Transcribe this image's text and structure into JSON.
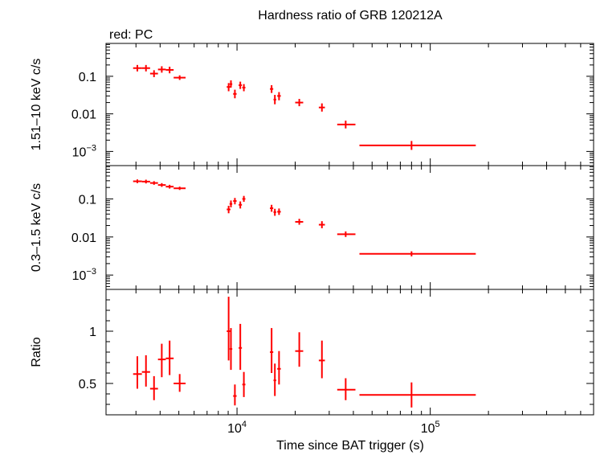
{
  "chart_data": {
    "type": "scatter",
    "title": "Hardness ratio of GRB 120212A",
    "legend": "red: PC",
    "xlabel": "Time since BAT trigger (s)",
    "x_scale": "log",
    "xlim": [
      2100,
      700000
    ],
    "x_tick_labels": [
      {
        "value": 10000,
        "base": "10",
        "exp": "4"
      },
      {
        "value": 100000,
        "base": "10",
        "exp": "5"
      }
    ],
    "color": "#ff0000",
    "panels": [
      {
        "id": "hard",
        "ylabel": "1.51–10 keV c/s",
        "y_scale": "log",
        "ylim": [
          0.00042,
          0.75
        ],
        "y_tick_labels": [
          {
            "value": 0.1,
            "text": "0.1"
          },
          {
            "value": 0.01,
            "text": "0.01"
          },
          {
            "value": 0.001,
            "base": "10",
            "exp": "−3"
          }
        ],
        "points": [
          {
            "x": 3050,
            "xlo": 2900,
            "xhi": 3220,
            "y": 0.165,
            "ylo": 0.135,
            "yhi": 0.2
          },
          {
            "x": 3380,
            "xlo": 3220,
            "xhi": 3550,
            "y": 0.165,
            "ylo": 0.135,
            "yhi": 0.2
          },
          {
            "x": 3720,
            "xlo": 3550,
            "xhi": 3900,
            "y": 0.118,
            "ylo": 0.095,
            "yhi": 0.145
          },
          {
            "x": 4080,
            "xlo": 3900,
            "xhi": 4280,
            "y": 0.152,
            "ylo": 0.125,
            "yhi": 0.185
          },
          {
            "x": 4480,
            "xlo": 4280,
            "xhi": 4700,
            "y": 0.148,
            "ylo": 0.12,
            "yhi": 0.18
          },
          {
            "x": 5050,
            "xlo": 4700,
            "xhi": 5420,
            "y": 0.092,
            "ylo": 0.08,
            "yhi": 0.106
          },
          {
            "x": 9050,
            "xlo": 8850,
            "xhi": 9250,
            "y": 0.052,
            "ylo": 0.04,
            "yhi": 0.066
          },
          {
            "x": 9300,
            "xlo": 9150,
            "xhi": 9450,
            "y": 0.062,
            "ylo": 0.05,
            "yhi": 0.078
          },
          {
            "x": 9750,
            "xlo": 9550,
            "xhi": 9950,
            "y": 0.034,
            "ylo": 0.026,
            "yhi": 0.044
          },
          {
            "x": 10400,
            "xlo": 10200,
            "xhi": 10600,
            "y": 0.058,
            "ylo": 0.046,
            "yhi": 0.072
          },
          {
            "x": 10850,
            "xlo": 10650,
            "xhi": 11050,
            "y": 0.05,
            "ylo": 0.04,
            "yhi": 0.062
          },
          {
            "x": 15100,
            "xlo": 14800,
            "xhi": 15400,
            "y": 0.046,
            "ylo": 0.036,
            "yhi": 0.058
          },
          {
            "x": 15700,
            "xlo": 15450,
            "xhi": 15950,
            "y": 0.024,
            "ylo": 0.018,
            "yhi": 0.032
          },
          {
            "x": 16500,
            "xlo": 16150,
            "xhi": 16850,
            "y": 0.03,
            "ylo": 0.023,
            "yhi": 0.038
          },
          {
            "x": 21000,
            "xlo": 20000,
            "xhi": 22000,
            "y": 0.02,
            "ylo": 0.016,
            "yhi": 0.025
          },
          {
            "x": 27500,
            "xlo": 26500,
            "xhi": 28500,
            "y": 0.0148,
            "ylo": 0.0115,
            "yhi": 0.019
          },
          {
            "x": 36500,
            "xlo": 33000,
            "xhi": 41000,
            "y": 0.0052,
            "ylo": 0.0041,
            "yhi": 0.0066
          },
          {
            "x": 80000,
            "xlo": 43000,
            "xhi": 172000,
            "y": 0.00145,
            "ylo": 0.0011,
            "yhi": 0.0019
          }
        ]
      },
      {
        "id": "soft",
        "ylabel": "0.3–1.5 keV c/s",
        "y_scale": "log",
        "ylim": [
          0.00042,
          0.75
        ],
        "y_tick_labels": [
          {
            "value": 0.1,
            "text": "0.1"
          },
          {
            "value": 0.01,
            "text": "0.01"
          },
          {
            "value": 0.001,
            "base": "10",
            "exp": "−3"
          }
        ],
        "points": [
          {
            "x": 3050,
            "xlo": 2900,
            "xhi": 3220,
            "y": 0.29,
            "ylo": 0.26,
            "yhi": 0.325
          },
          {
            "x": 3380,
            "xlo": 3220,
            "xhi": 3550,
            "y": 0.285,
            "ylo": 0.255,
            "yhi": 0.32
          },
          {
            "x": 3720,
            "xlo": 3550,
            "xhi": 3900,
            "y": 0.262,
            "ylo": 0.235,
            "yhi": 0.292
          },
          {
            "x": 4080,
            "xlo": 3900,
            "xhi": 4280,
            "y": 0.232,
            "ylo": 0.207,
            "yhi": 0.26
          },
          {
            "x": 4480,
            "xlo": 4280,
            "xhi": 4700,
            "y": 0.21,
            "ylo": 0.187,
            "yhi": 0.235
          },
          {
            "x": 5050,
            "xlo": 4700,
            "xhi": 5420,
            "y": 0.19,
            "ylo": 0.172,
            "yhi": 0.21
          },
          {
            "x": 9050,
            "xlo": 8850,
            "xhi": 9250,
            "y": 0.053,
            "ylo": 0.042,
            "yhi": 0.066
          },
          {
            "x": 9300,
            "xlo": 9150,
            "xhi": 9450,
            "y": 0.074,
            "ylo": 0.06,
            "yhi": 0.091
          },
          {
            "x": 9750,
            "xlo": 9550,
            "xhi": 9950,
            "y": 0.088,
            "ylo": 0.072,
            "yhi": 0.106
          },
          {
            "x": 10400,
            "xlo": 10200,
            "xhi": 10600,
            "y": 0.07,
            "ylo": 0.056,
            "yhi": 0.086
          },
          {
            "x": 10850,
            "xlo": 10650,
            "xhi": 11050,
            "y": 0.1,
            "ylo": 0.084,
            "yhi": 0.12
          },
          {
            "x": 15100,
            "xlo": 14800,
            "xhi": 15400,
            "y": 0.057,
            "ylo": 0.046,
            "yhi": 0.07
          },
          {
            "x": 15700,
            "xlo": 15450,
            "xhi": 15950,
            "y": 0.045,
            "ylo": 0.036,
            "yhi": 0.055
          },
          {
            "x": 16500,
            "xlo": 16150,
            "xhi": 16850,
            "y": 0.046,
            "ylo": 0.038,
            "yhi": 0.056
          },
          {
            "x": 21000,
            "xlo": 20000,
            "xhi": 22000,
            "y": 0.025,
            "ylo": 0.021,
            "yhi": 0.03
          },
          {
            "x": 27500,
            "xlo": 26500,
            "xhi": 28500,
            "y": 0.021,
            "ylo": 0.017,
            "yhi": 0.026
          },
          {
            "x": 36500,
            "xlo": 33000,
            "xhi": 41000,
            "y": 0.0118,
            "ylo": 0.01,
            "yhi": 0.014
          },
          {
            "x": 80000,
            "xlo": 43000,
            "xhi": 172000,
            "y": 0.0036,
            "ylo": 0.0031,
            "yhi": 0.0042
          }
        ]
      },
      {
        "id": "ratio",
        "ylabel": "Ratio",
        "y_scale": "linear",
        "ylim": [
          0.2,
          1.4
        ],
        "y_tick_labels": [
          {
            "value": 1.0,
            "text": "1"
          },
          {
            "value": 0.5,
            "text": "0.5"
          }
        ],
        "y_minor_step": 0.1,
        "points": [
          {
            "x": 3050,
            "xlo": 2900,
            "xhi": 3220,
            "y": 0.59,
            "ylo": 0.45,
            "yhi": 0.76
          },
          {
            "x": 3380,
            "xlo": 3220,
            "xhi": 3550,
            "y": 0.61,
            "ylo": 0.47,
            "yhi": 0.77
          },
          {
            "x": 3720,
            "xlo": 3550,
            "xhi": 3900,
            "y": 0.45,
            "ylo": 0.34,
            "yhi": 0.57
          },
          {
            "x": 4080,
            "xlo": 3900,
            "xhi": 4280,
            "y": 0.73,
            "ylo": 0.56,
            "yhi": 0.88
          },
          {
            "x": 4480,
            "xlo": 4280,
            "xhi": 4700,
            "y": 0.74,
            "ylo": 0.58,
            "yhi": 0.91
          },
          {
            "x": 5050,
            "xlo": 4700,
            "xhi": 5420,
            "y": 0.5,
            "ylo": 0.42,
            "yhi": 0.59
          },
          {
            "x": 9050,
            "xlo": 8850,
            "xhi": 9250,
            "y": 1.0,
            "ylo": 0.72,
            "yhi": 1.33
          },
          {
            "x": 9300,
            "xlo": 9150,
            "xhi": 9450,
            "y": 0.83,
            "ylo": 0.63,
            "yhi": 1.03
          },
          {
            "x": 9750,
            "xlo": 9550,
            "xhi": 9950,
            "y": 0.38,
            "ylo": 0.29,
            "yhi": 0.49
          },
          {
            "x": 10400,
            "xlo": 10200,
            "xhi": 10600,
            "y": 0.84,
            "ylo": 0.63,
            "yhi": 1.07
          },
          {
            "x": 10850,
            "xlo": 10650,
            "xhi": 11050,
            "y": 0.49,
            "ylo": 0.37,
            "yhi": 0.61
          },
          {
            "x": 15100,
            "xlo": 14800,
            "xhi": 15400,
            "y": 0.8,
            "ylo": 0.6,
            "yhi": 1.03
          },
          {
            "x": 15700,
            "xlo": 15450,
            "xhi": 15950,
            "y": 0.53,
            "ylo": 0.38,
            "yhi": 0.69
          },
          {
            "x": 16500,
            "xlo": 16150,
            "xhi": 16850,
            "y": 0.64,
            "ylo": 0.49,
            "yhi": 0.81
          },
          {
            "x": 21000,
            "xlo": 20000,
            "xhi": 22000,
            "y": 0.81,
            "ylo": 0.66,
            "yhi": 0.99
          },
          {
            "x": 27500,
            "xlo": 26500,
            "xhi": 28500,
            "y": 0.72,
            "ylo": 0.55,
            "yhi": 0.91
          },
          {
            "x": 36500,
            "xlo": 33000,
            "xhi": 41000,
            "y": 0.44,
            "ylo": 0.34,
            "yhi": 0.55
          },
          {
            "x": 80000,
            "xlo": 43000,
            "xhi": 172000,
            "y": 0.39,
            "ylo": 0.27,
            "yhi": 0.51
          }
        ]
      }
    ]
  }
}
